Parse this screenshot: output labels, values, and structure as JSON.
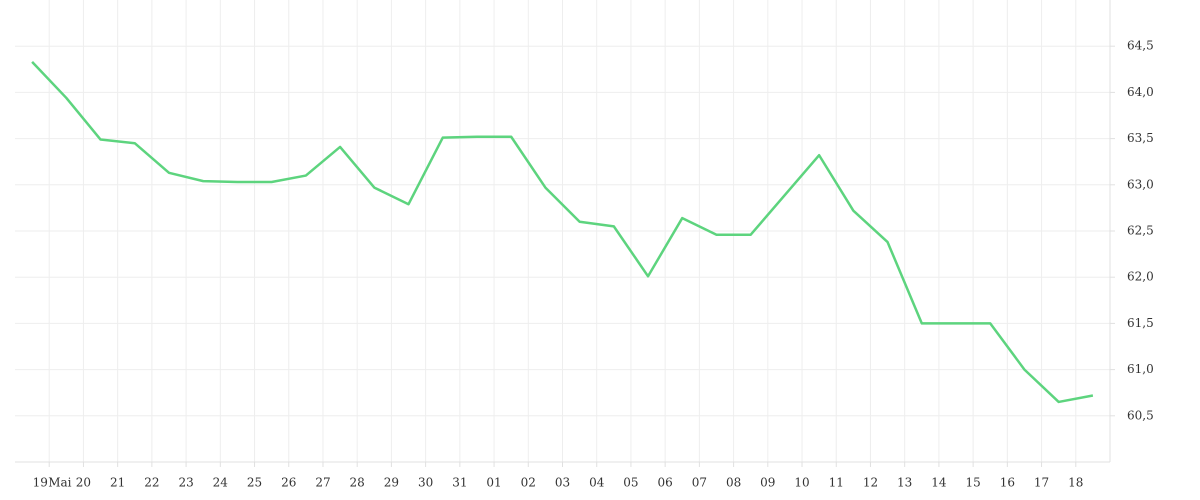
{
  "chart_data": {
    "type": "line",
    "x_annotation": "Mai",
    "x": [
      -0.5,
      0.5,
      1.5,
      2.5,
      3.5,
      4.5,
      5.5,
      6.5,
      7.5,
      8.5,
      9.5,
      10.5,
      11.5,
      12.5,
      13.5,
      14.5,
      15.5,
      16.5,
      17.5,
      18.5,
      19.5,
      20.5,
      21.5,
      22.5,
      23.5,
      24.5,
      25.5,
      26.5,
      27.5,
      28.5,
      29.5,
      30.5
    ],
    "series": [
      {
        "color": "#5dd47e",
        "values": [
          64.33,
          63.94,
          63.49,
          63.45,
          63.13,
          63.04,
          63.03,
          63.03,
          63.1,
          63.41,
          62.97,
          62.79,
          63.51,
          63.52,
          63.52,
          62.97,
          62.6,
          62.55,
          62.01,
          62.64,
          62.46,
          62.46,
          62.89,
          63.32,
          62.72,
          62.38,
          61.5,
          61.5,
          61.5,
          61.0,
          60.65,
          60.72
        ]
      }
    ],
    "xlim": [
      -1,
      31
    ],
    "xticks": [
      {
        "value": 0,
        "label": "19"
      },
      {
        "value": 1,
        "label": "20"
      },
      {
        "value": 2,
        "label": "21"
      },
      {
        "value": 3,
        "label": "22"
      },
      {
        "value": 4,
        "label": "23"
      },
      {
        "value": 5,
        "label": "24"
      },
      {
        "value": 6,
        "label": "25"
      },
      {
        "value": 7,
        "label": "26"
      },
      {
        "value": 8,
        "label": "27"
      },
      {
        "value": 9,
        "label": "28"
      },
      {
        "value": 10,
        "label": "29"
      },
      {
        "value": 11,
        "label": "30"
      },
      {
        "value": 12,
        "label": "31"
      },
      {
        "value": 13,
        "label": "01"
      },
      {
        "value": 14,
        "label": "02"
      },
      {
        "value": 15,
        "label": "03"
      },
      {
        "value": 16,
        "label": "04"
      },
      {
        "value": 17,
        "label": "05"
      },
      {
        "value": 18,
        "label": "06"
      },
      {
        "value": 19,
        "label": "07"
      },
      {
        "value": 20,
        "label": "08"
      },
      {
        "value": 21,
        "label": "09"
      },
      {
        "value": 22,
        "label": "10"
      },
      {
        "value": 23,
        "label": "11"
      },
      {
        "value": 24,
        "label": "12"
      },
      {
        "value": 25,
        "label": "13"
      },
      {
        "value": 26,
        "label": "14"
      },
      {
        "value": 27,
        "label": "15"
      },
      {
        "value": 28,
        "label": "16"
      },
      {
        "value": 29,
        "label": "17"
      },
      {
        "value": 30,
        "label": "18"
      }
    ],
    "ylim": [
      60,
      65
    ],
    "yticks": [
      {
        "value": 60.5,
        "label": "60,5"
      },
      {
        "value": 61,
        "label": "61,0"
      },
      {
        "value": 61.5,
        "label": "61,5"
      },
      {
        "value": 62,
        "label": "62,0"
      },
      {
        "value": 62.5,
        "label": "62,5"
      },
      {
        "value": 63,
        "label": "63,0"
      },
      {
        "value": 63.5,
        "label": "63,5"
      },
      {
        "value": 64,
        "label": "64,0"
      },
      {
        "value": 64.5,
        "label": "64,5"
      }
    ],
    "grid": true
  }
}
